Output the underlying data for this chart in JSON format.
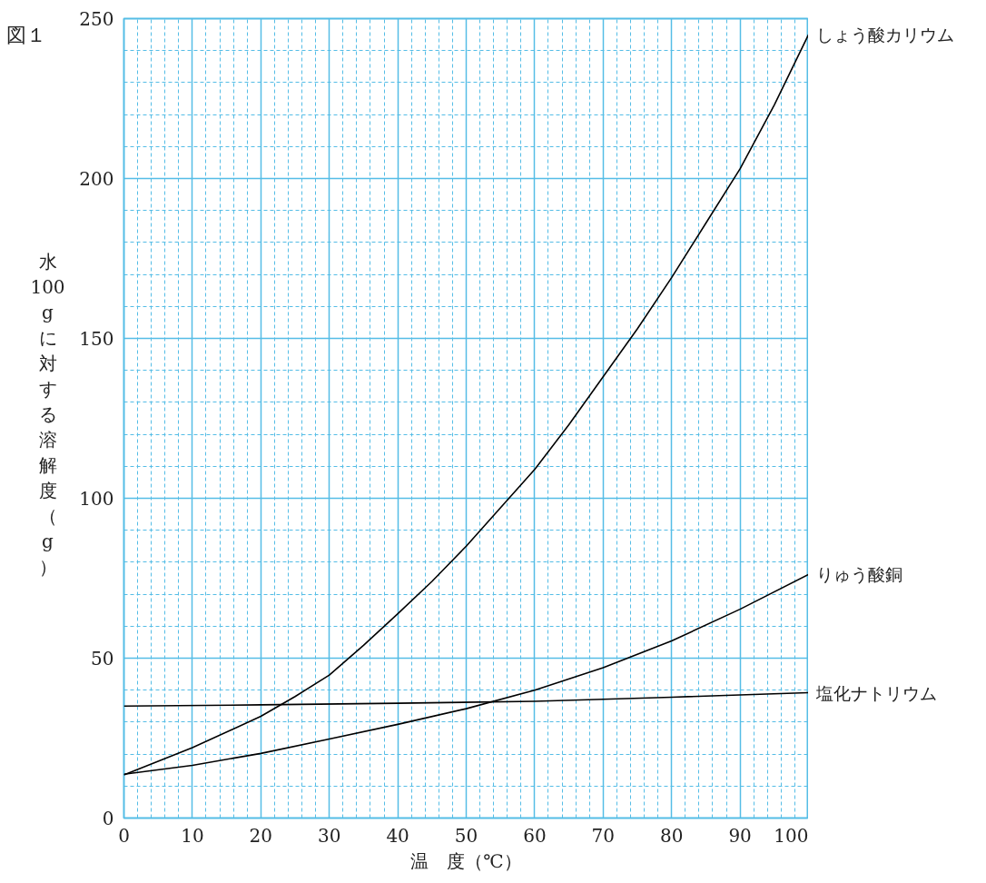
{
  "chart_data": {
    "type": "line",
    "title": "図１",
    "xlabel": "温　度（℃）",
    "ylabel": "水100gに対する溶解度（g）",
    "xlim": [
      0,
      100
    ],
    "ylim": [
      0,
      250
    ],
    "xticks": [
      0,
      {
        "value": 2,
        "label": null
      },
      {
        "value": 4,
        "label": null
      },
      {
        "value": 6,
        "label": null
      },
      {
        "value": 8,
        "label": null
      },
      10,
      {
        "value": 12,
        "label": null
      },
      {
        "value": 14,
        "label": null
      },
      {
        "value": 16,
        "label": null
      },
      {
        "value": 18,
        "label": null
      },
      20,
      {
        "value": 22,
        "label": null
      },
      {
        "value": 24,
        "label": null
      },
      {
        "value": 26,
        "label": null
      },
      {
        "value": 28,
        "label": null
      },
      30,
      {
        "value": 32,
        "label": null
      },
      {
        "value": 34,
        "label": null
      },
      {
        "value": 36,
        "label": null
      },
      {
        "value": 38,
        "label": null
      },
      40,
      {
        "value": 42,
        "label": null
      },
      {
        "value": 44,
        "label": null
      },
      {
        "value": 46,
        "label": null
      },
      {
        "value": 48,
        "label": null
      },
      50,
      {
        "value": 52,
        "label": null
      },
      {
        "value": 54,
        "label": null
      },
      {
        "value": 56,
        "label": null
      },
      {
        "value": 58,
        "label": null
      },
      60,
      {
        "value": 62,
        "label": null
      },
      {
        "value": 64,
        "label": null
      },
      {
        "value": 66,
        "label": null
      },
      {
        "value": 68,
        "label": null
      },
      70,
      {
        "value": 72,
        "label": null
      },
      {
        "value": 74,
        "label": null
      },
      {
        "value": 76,
        "label": null
      },
      {
        "value": 78,
        "label": null
      },
      80,
      {
        "value": 82,
        "label": null
      },
      {
        "value": 84,
        "label": null
      },
      {
        "value": 86,
        "label": null
      },
      {
        "value": 88,
        "label": null
      },
      90,
      {
        "value": 92,
        "label": null
      },
      {
        "value": 94,
        "label": null
      },
      {
        "value": 96,
        "label": null
      },
      {
        "value": 98,
        "label": null
      },
      100
    ],
    "yticks": [
      0,
      {
        "value": 10,
        "label": null
      },
      {
        "value": 20,
        "label": null
      },
      {
        "value": 30,
        "label": null
      },
      {
        "value": 40,
        "label": null
      },
      50,
      {
        "value": 60,
        "label": null
      },
      {
        "value": 70,
        "label": null
      },
      {
        "value": 80,
        "label": null
      },
      {
        "value": 90,
        "label": null
      },
      100,
      {
        "value": 110,
        "label": null
      },
      {
        "value": 120,
        "label": null
      },
      {
        "value": 130,
        "label": null
      },
      {
        "value": 140,
        "label": null
      },
      150,
      {
        "value": 160,
        "label": null
      },
      {
        "value": 170,
        "label": null
      },
      {
        "value": 180,
        "label": null
      },
      {
        "value": 190,
        "label": null
      },
      200,
      {
        "value": 210,
        "label": null
      },
      {
        "value": 220,
        "label": null
      },
      {
        "value": 230,
        "label": null
      },
      {
        "value": 240,
        "label": null
      },
      250
    ],
    "grid": true,
    "marker": "none",
    "line_style": "solid",
    "series": [
      {
        "name": "しょう酸カリウム",
        "color": "#000000",
        "x": [
          0,
          10,
          20,
          25,
          30,
          35,
          40,
          45,
          50,
          55,
          60,
          65,
          70,
          75,
          80,
          85,
          90,
          95,
          100
        ],
        "values": [
          13.5,
          22,
          31.8,
          38,
          44.7,
          54,
          63.9,
          74,
          85,
          97,
          109,
          123,
          138,
          153,
          169,
          186,
          203,
          223,
          245
        ]
      },
      {
        "name": "りゅう酸銅",
        "color": "#000000",
        "x": [
          0,
          10,
          20,
          30,
          40,
          50,
          60,
          70,
          80,
          90,
          100
        ],
        "values": [
          13.7,
          16.5,
          20.2,
          24.7,
          29.3,
          34.2,
          40,
          47,
          55.4,
          65.3,
          76.2
        ]
      },
      {
        "name": "塩化ナトリウム",
        "color": "#000000",
        "x": [
          0,
          20,
          40,
          60,
          80,
          100
        ],
        "values": [
          35.0,
          35.4,
          35.9,
          36.5,
          37.8,
          39.2
        ]
      }
    ]
  }
}
